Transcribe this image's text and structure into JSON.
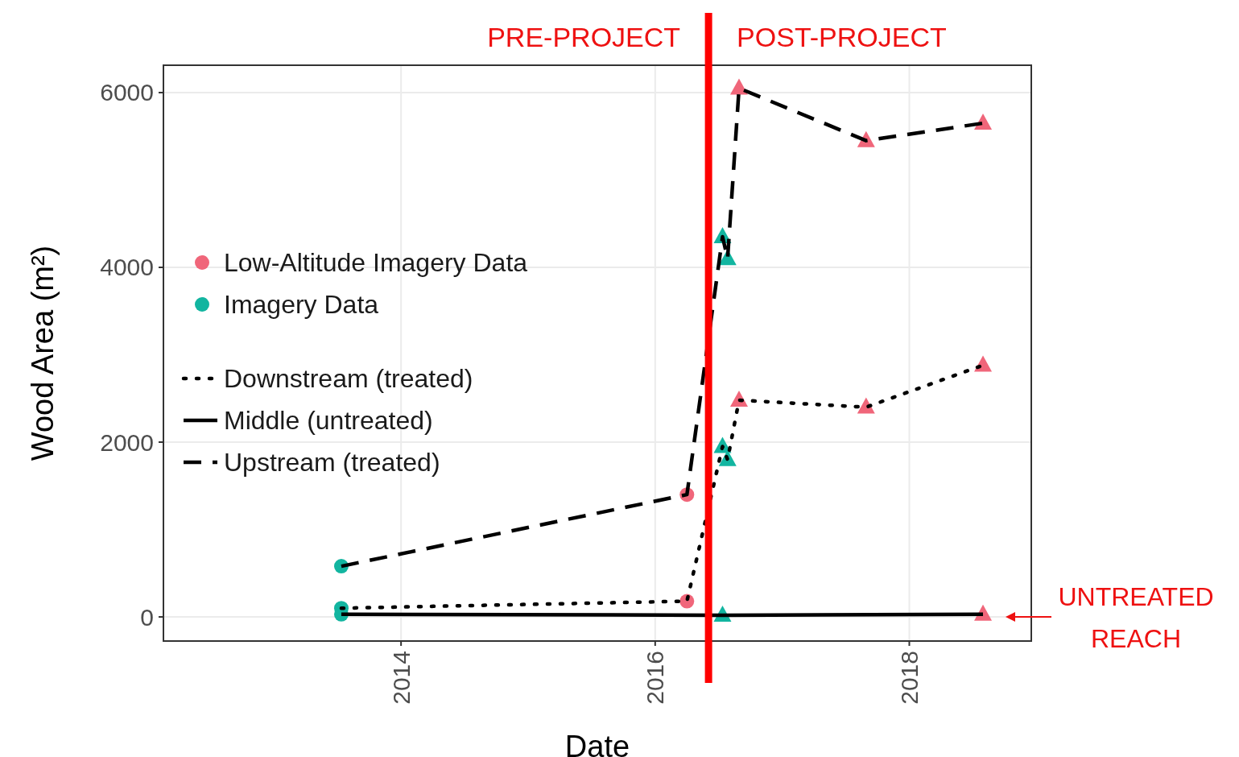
{
  "chart_data": {
    "type": "line",
    "xlabel": "Date",
    "ylabel": "Wood Area (m²)",
    "xlim": [
      2012.13,
      2018.96
    ],
    "xticks": [
      2014,
      2016,
      2018
    ],
    "ylim": [
      -276,
      6313
    ],
    "yticks": [
      0,
      2000,
      4000,
      6000
    ],
    "grid": true,
    "legend": "left",
    "series": [
      {
        "type": "scatter",
        "name": "Low-Altitude Imagery Data",
        "color": "#f0667a",
        "marker": "circle",
        "x": [
          2016.25,
          2016.25
        ],
        "values": [
          1400,
          180
        ]
      },
      {
        "type": "scatter",
        "name": "Imagery Data",
        "color": "#12b5a0",
        "marker": "circle",
        "x": [
          2013.53,
          2013.53,
          2013.53
        ],
        "values": [
          580,
          100,
          30
        ]
      },
      {
        "name": "Downstream (treated)",
        "color": "#000000",
        "line_style": "dotted",
        "x": [
          2013.53,
          2016.25,
          2016.53,
          2016.57,
          2016.66,
          2017.66,
          2018.58
        ],
        "values": [
          100,
          180,
          1950,
          1800,
          2480,
          2400,
          2880
        ]
      },
      {
        "name": "Middle (untreated)",
        "color": "#000000",
        "line_style": "solid",
        "x": [
          2013.53,
          2016.53,
          2018.58
        ],
        "values": [
          30,
          20,
          30
        ]
      },
      {
        "name": "Upstream (treated)",
        "color": "#000000",
        "line_style": "dashed",
        "x": [
          2013.53,
          2016.25,
          2016.53,
          2016.57,
          2016.66,
          2017.66,
          2018.58
        ],
        "values": [
          580,
          1400,
          4350,
          4100,
          6050,
          5450,
          5650
        ]
      },
      {
        "type": "scatter",
        "color": "#f0667a",
        "marker": "triangle",
        "x": [
          2016.66,
          2017.66,
          2018.58,
          2016.66,
          2017.66,
          2018.58,
          2018.58
        ],
        "values": [
          6050,
          5450,
          5650,
          2480,
          2400,
          2880,
          30
        ]
      },
      {
        "type": "scatter",
        "color": "#12b5a0",
        "marker": "triangle",
        "x": [
          2016.53,
          2016.57,
          2016.53,
          2016.57,
          2016.53
        ],
        "values": [
          4350,
          4100,
          1950,
          1800,
          20
        ]
      }
    ],
    "ref_lines": [
      {
        "axis": "x",
        "value": 2016.42,
        "color": "#ff0000"
      }
    ],
    "annotations": [
      "PRE-PROJECT",
      "POST-PROJECT",
      "UNTREATED REACH"
    ]
  }
}
